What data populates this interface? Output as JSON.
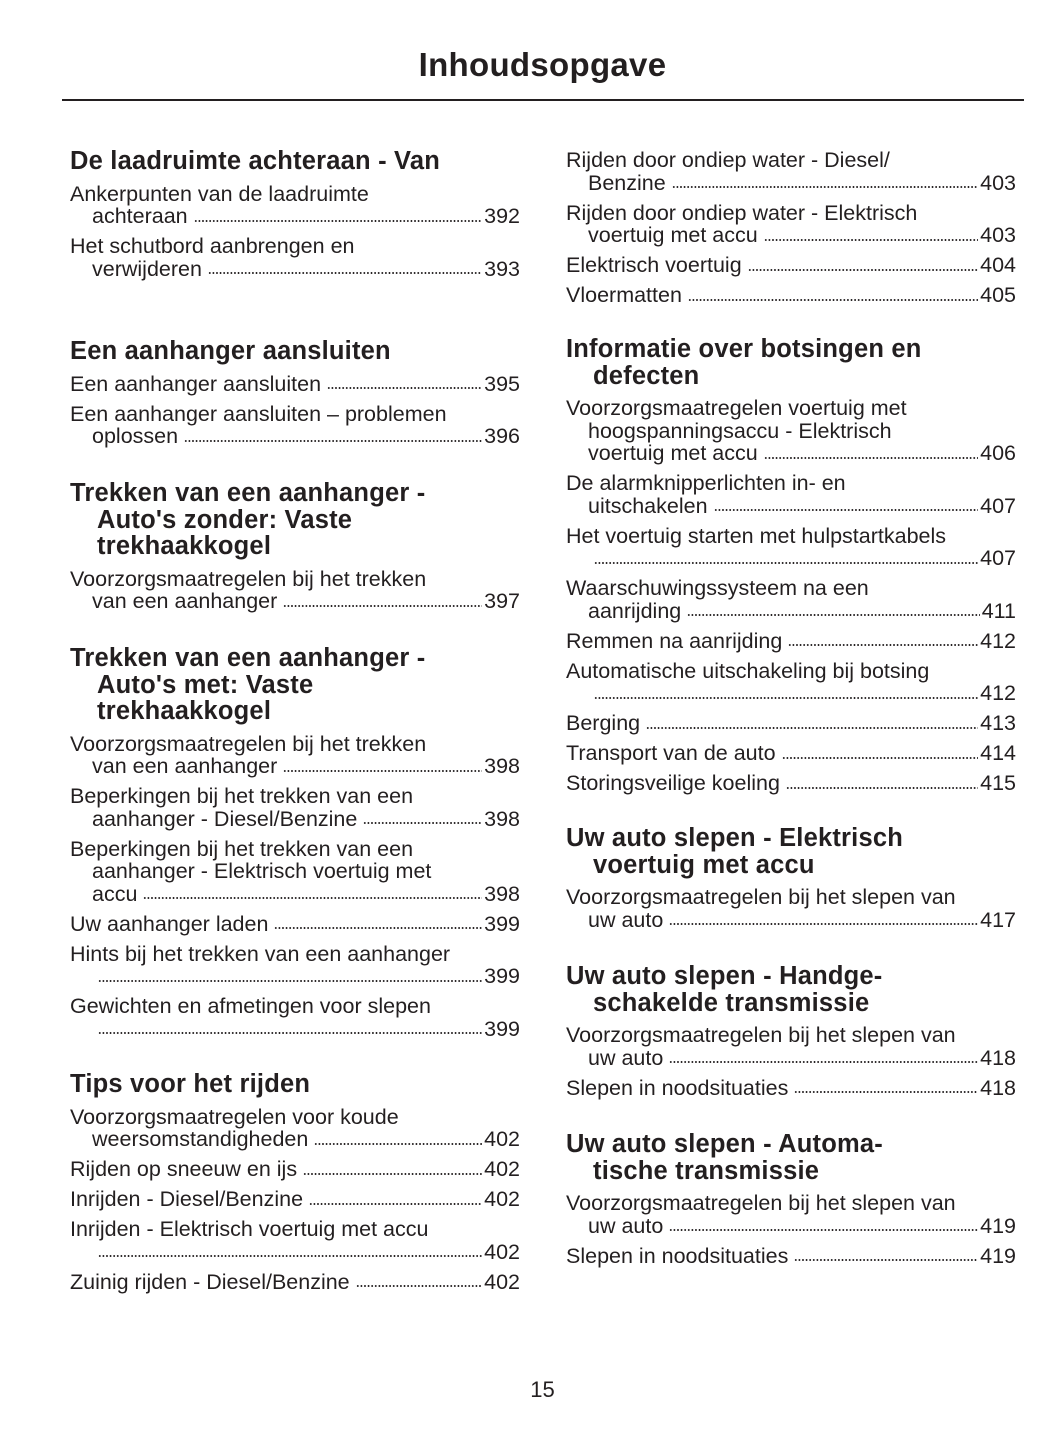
{
  "title": "Inhoudsopgave",
  "page_number": "15",
  "left_column": [
    {
      "heading": [
        "De laadruimte achteraan - Van"
      ],
      "entries": [
        {
          "lines": [
            "Ankerpunten van de laadruimte",
            "achteraan"
          ],
          "page": "392"
        },
        {
          "lines": [
            "Het schutbord aanbrengen en",
            "verwijderen"
          ],
          "page": "393"
        }
      ]
    },
    {
      "heading": [
        "Een aanhanger aansluiten"
      ],
      "entries": [
        {
          "lines": [
            "Een aanhanger aansluiten"
          ],
          "page": "395"
        },
        {
          "lines": [
            "Een aanhanger aansluiten – problemen",
            "oplossen"
          ],
          "page": "396"
        }
      ]
    },
    {
      "heading": [
        "Trekken van een aanhanger -",
        "Auto's zonder: Vaste",
        "trekhaakkogel"
      ],
      "entries": [
        {
          "lines": [
            "Voorzorgsmaatregelen bij het trekken",
            "van een aanhanger"
          ],
          "page": "397"
        }
      ]
    },
    {
      "heading": [
        "Trekken van een aanhanger -",
        "Auto's met: Vaste",
        "trekhaakkogel"
      ],
      "entries": [
        {
          "lines": [
            "Voorzorgsmaatregelen bij het trekken",
            "van een aanhanger"
          ],
          "page": "398"
        },
        {
          "lines": [
            "Beperkingen bij het trekken van een",
            "aanhanger - Diesel/Benzine"
          ],
          "page": "398"
        },
        {
          "lines": [
            "Beperkingen bij het trekken van een",
            "aanhanger - Elektrisch voertuig met",
            "accu"
          ],
          "page": "398"
        },
        {
          "lines": [
            "Uw aanhanger laden"
          ],
          "page": "399"
        },
        {
          "lines": [
            "Hints bij het trekken van een aanhanger",
            ""
          ],
          "page": "399"
        },
        {
          "lines": [
            "Gewichten en afmetingen voor slepen",
            ""
          ],
          "page": "399"
        }
      ]
    },
    {
      "heading": [
        "Tips voor het rijden"
      ],
      "entries": [
        {
          "lines": [
            "Voorzorgsmaatregelen voor koude",
            "weersomstandigheden"
          ],
          "page": "402"
        },
        {
          "lines": [
            "Rijden op sneeuw en ijs"
          ],
          "page": "402"
        },
        {
          "lines": [
            "Inrijden - Diesel/Benzine"
          ],
          "page": "402"
        },
        {
          "lines": [
            "Inrijden - Elektrisch voertuig met accu",
            ""
          ],
          "page": "402"
        },
        {
          "lines": [
            "Zuinig rijden - Diesel/Benzine"
          ],
          "page": "402"
        }
      ]
    }
  ],
  "right_column": [
    {
      "heading": [],
      "entries": [
        {
          "lines": [
            "Rijden door ondiep water - Diesel/",
            "Benzine"
          ],
          "page": "403"
        },
        {
          "lines": [
            "Rijden door ondiep water - Elektrisch",
            "voertuig met accu"
          ],
          "page": "403"
        },
        {
          "lines": [
            "Elektrisch voertuig"
          ],
          "page": "404"
        },
        {
          "lines": [
            "Vloermatten"
          ],
          "page": "405"
        }
      ]
    },
    {
      "heading": [
        "Informatie over botsingen en",
        "defecten"
      ],
      "entries": [
        {
          "lines": [
            "Voorzorgsmaatregelen voertuig met",
            "hoogspanningsaccu - Elektrisch",
            "voertuig met accu"
          ],
          "page": "406"
        },
        {
          "lines": [
            "De alarmknipperlichten in- en",
            "uitschakelen"
          ],
          "page": "407"
        },
        {
          "lines": [
            "Het voertuig starten met hulpstartkabels",
            ""
          ],
          "page": "407"
        },
        {
          "lines": [
            "Waarschuwingssysteem na een",
            "aanrijding"
          ],
          "page": "411"
        },
        {
          "lines": [
            "Remmen na aanrijding"
          ],
          "page": "412"
        },
        {
          "lines": [
            "Automatische uitschakeling bij botsing",
            ""
          ],
          "page": "412"
        },
        {
          "lines": [
            "Berging"
          ],
          "page": "413"
        },
        {
          "lines": [
            "Transport van de auto"
          ],
          "page": "414"
        },
        {
          "lines": [
            "Storingsveilige koeling"
          ],
          "page": "415"
        }
      ]
    },
    {
      "heading": [
        "Uw auto slepen - Elektrisch",
        "voertuig met accu"
      ],
      "entries": [
        {
          "lines": [
            "Voorzorgsmaatregelen bij het slepen van",
            "uw auto"
          ],
          "page": "417"
        }
      ]
    },
    {
      "heading": [
        "Uw auto slepen - Handge-",
        "schakelde transmissie"
      ],
      "entries": [
        {
          "lines": [
            "Voorzorgsmaatregelen bij het slepen van",
            "uw auto"
          ],
          "page": "418"
        },
        {
          "lines": [
            "Slepen in noodsituaties"
          ],
          "page": "418"
        }
      ]
    },
    {
      "heading": [
        "Uw auto slepen - Automa-",
        "tische transmissie"
      ],
      "entries": [
        {
          "lines": [
            "Voorzorgsmaatregelen bij het slepen van",
            "uw auto"
          ],
          "page": "419"
        },
        {
          "lines": [
            "Slepen in noodsituaties"
          ],
          "page": "419"
        }
      ]
    }
  ]
}
